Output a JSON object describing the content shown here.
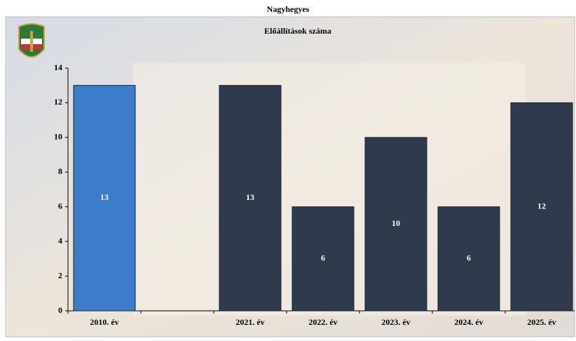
{
  "chart_data": {
    "type": "bar",
    "title": "Nagyhegyes",
    "subtitle": "Előállítások száma",
    "categories": [
      "2010. év",
      null,
      "2021. év",
      "2022. év",
      "2023. év",
      "2024. év",
      "2025. év"
    ],
    "values": [
      13,
      null,
      13,
      6,
      10,
      6,
      12
    ],
    "colors": [
      "#3b7dc9",
      null,
      "#2f3a4c",
      "#2f3a4c",
      "#2f3a4c",
      "#2f3a4c",
      "#2f3a4c"
    ],
    "ylim": [
      0,
      14
    ],
    "yticks": [
      0,
      2,
      4,
      6,
      8,
      10,
      12,
      14
    ],
    "grid": false
  }
}
